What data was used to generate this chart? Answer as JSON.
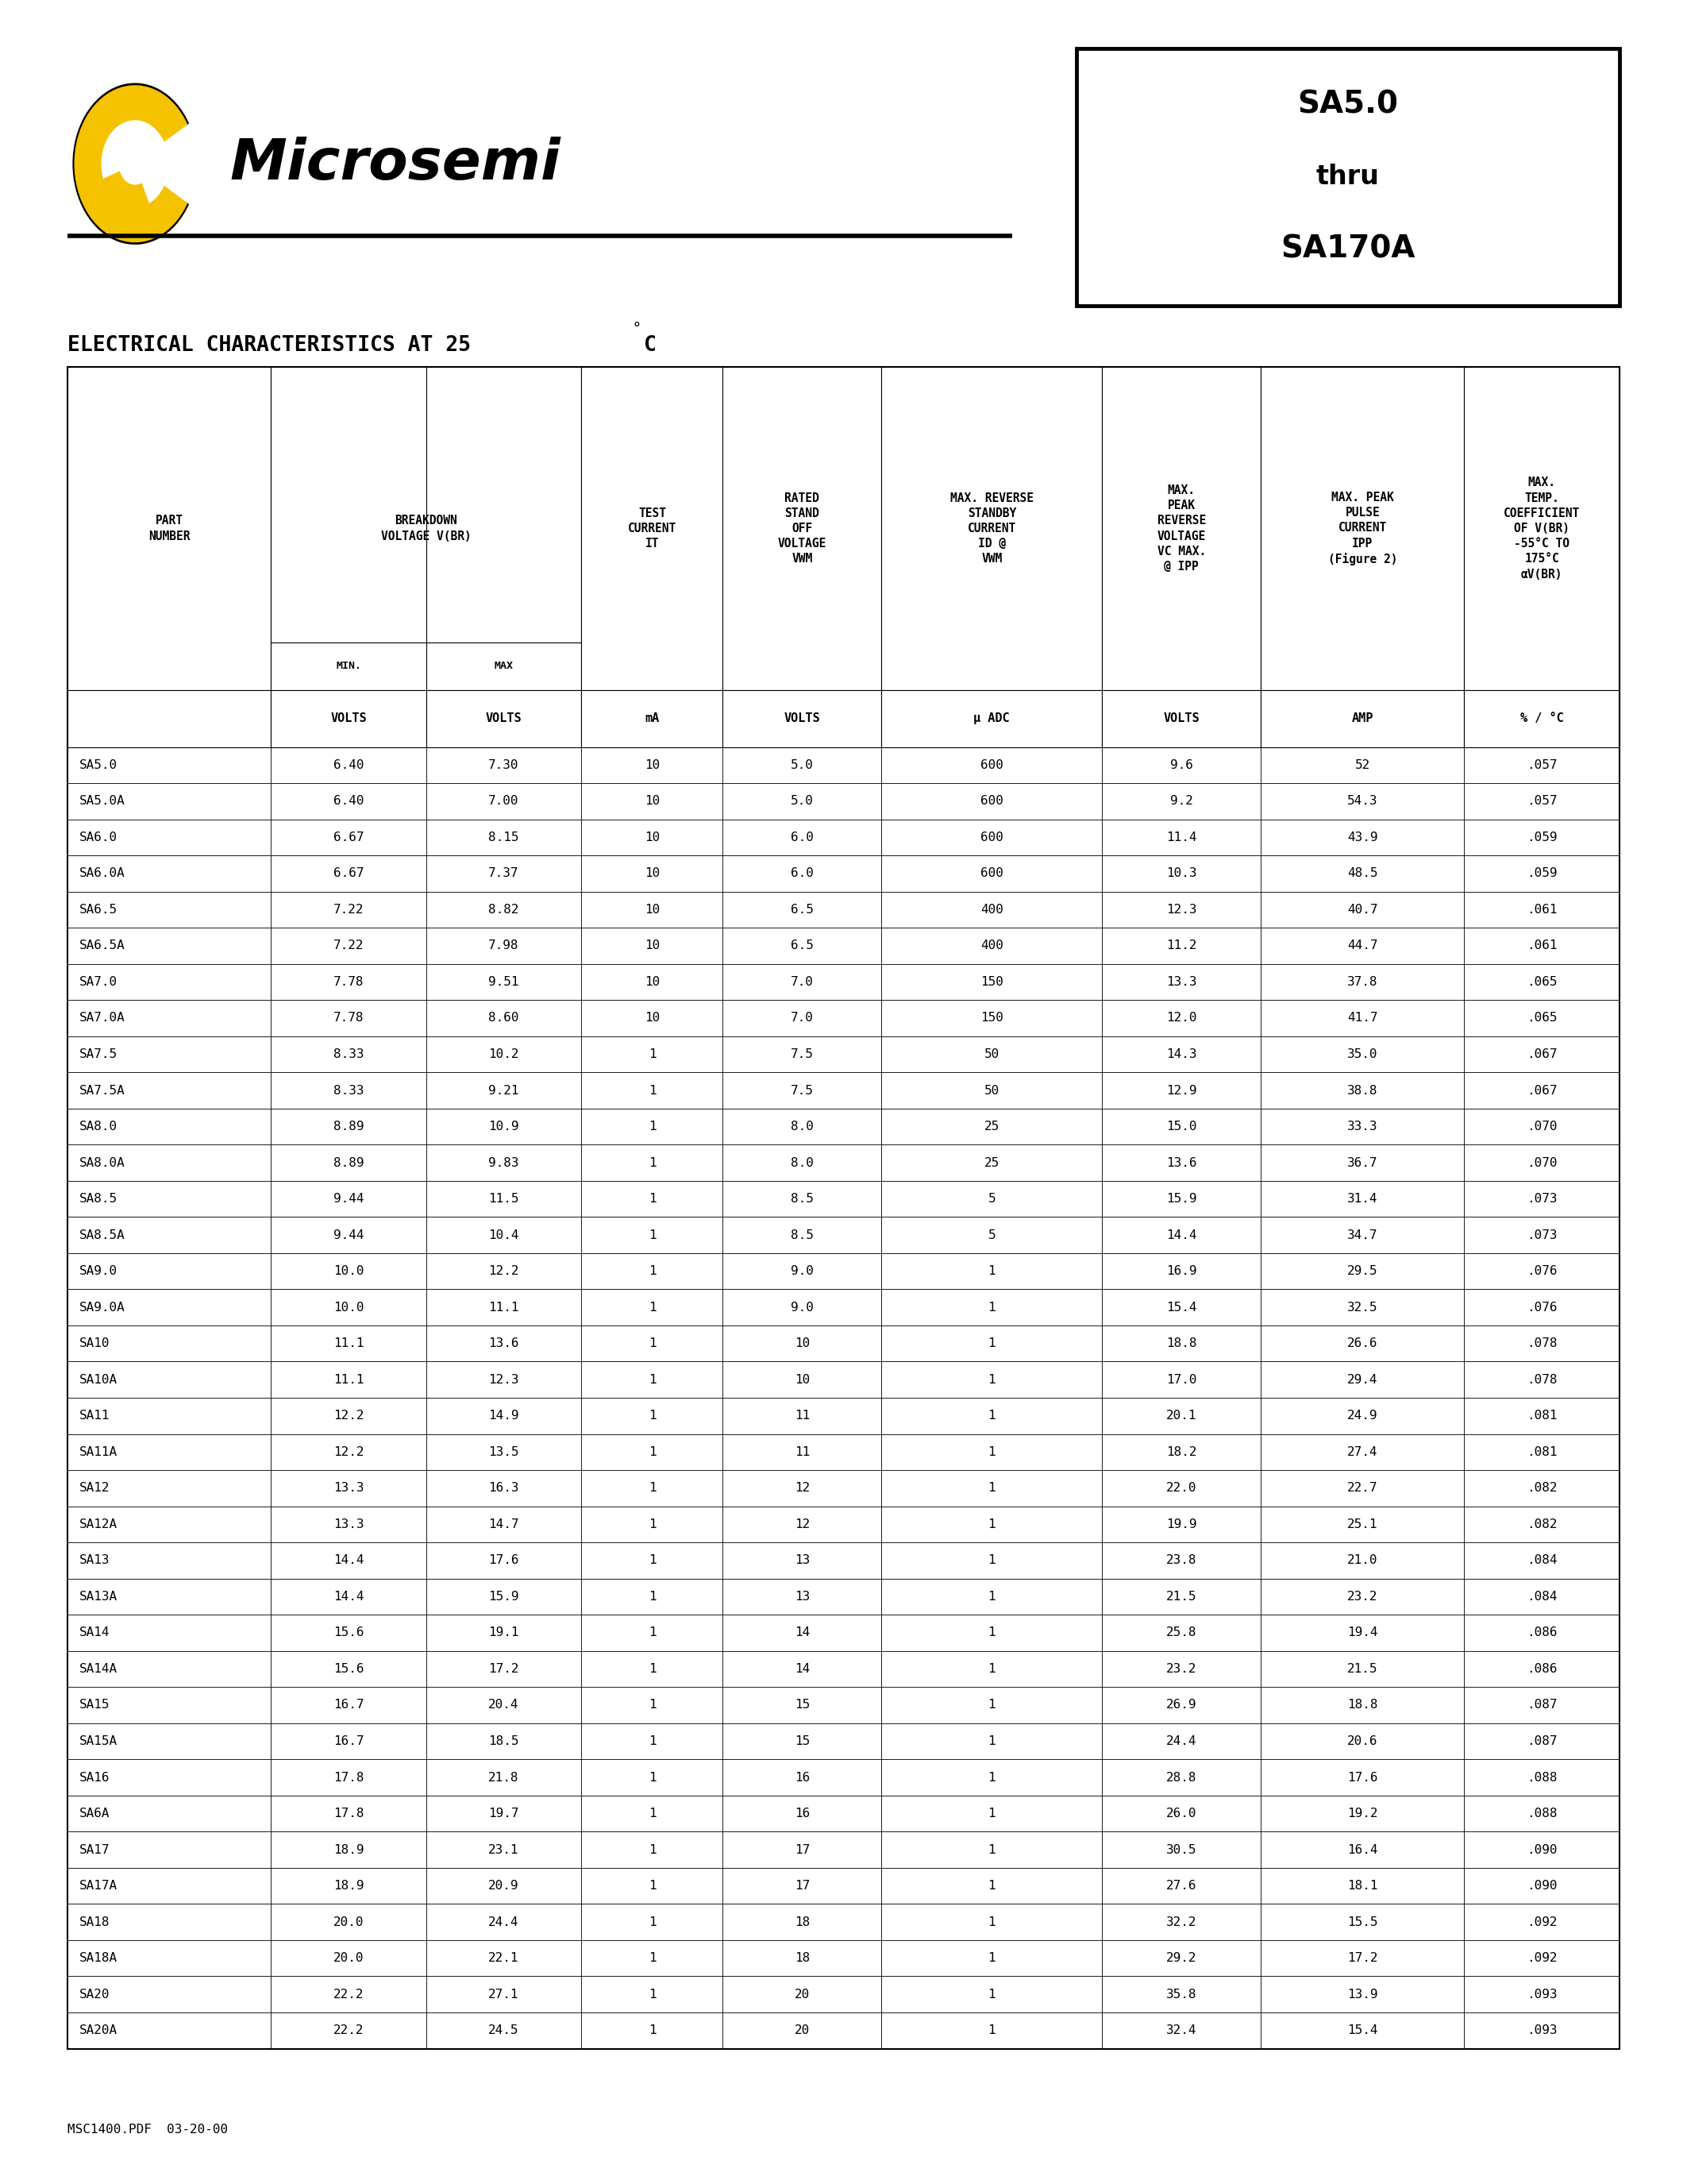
{
  "footer": "MSC1400.PDF  03-20-00",
  "rows": [
    [
      "SA5.0",
      "6.40",
      "7.30",
      "10",
      "5.0",
      "600",
      "9.6",
      "52",
      ".057"
    ],
    [
      "SA5.0A",
      "6.40",
      "7.00",
      "10",
      "5.0",
      "600",
      "9.2",
      "54.3",
      ".057"
    ],
    [
      "SA6.0",
      "6.67",
      "8.15",
      "10",
      "6.0",
      "600",
      "11.4",
      "43.9",
      ".059"
    ],
    [
      "SA6.0A",
      "6.67",
      "7.37",
      "10",
      "6.0",
      "600",
      "10.3",
      "48.5",
      ".059"
    ],
    [
      "SA6.5",
      "7.22",
      "8.82",
      "10",
      "6.5",
      "400",
      "12.3",
      "40.7",
      ".061"
    ],
    [
      "SA6.5A",
      "7.22",
      "7.98",
      "10",
      "6.5",
      "400",
      "11.2",
      "44.7",
      ".061"
    ],
    [
      "SA7.0",
      "7.78",
      "9.51",
      "10",
      "7.0",
      "150",
      "13.3",
      "37.8",
      ".065"
    ],
    [
      "SA7.0A",
      "7.78",
      "8.60",
      "10",
      "7.0",
      "150",
      "12.0",
      "41.7",
      ".065"
    ],
    [
      "SA7.5",
      "8.33",
      "10.2",
      "1",
      "7.5",
      "50",
      "14.3",
      "35.0",
      ".067"
    ],
    [
      "SA7.5A",
      "8.33",
      "9.21",
      "1",
      "7.5",
      "50",
      "12.9",
      "38.8",
      ".067"
    ],
    [
      "SA8.0",
      "8.89",
      "10.9",
      "1",
      "8.0",
      "25",
      "15.0",
      "33.3",
      ".070"
    ],
    [
      "SA8.0A",
      "8.89",
      "9.83",
      "1",
      "8.0",
      "25",
      "13.6",
      "36.7",
      ".070"
    ],
    [
      "SA8.5",
      "9.44",
      "11.5",
      "1",
      "8.5",
      "5",
      "15.9",
      "31.4",
      ".073"
    ],
    [
      "SA8.5A",
      "9.44",
      "10.4",
      "1",
      "8.5",
      "5",
      "14.4",
      "34.7",
      ".073"
    ],
    [
      "SA9.0",
      "10.0",
      "12.2",
      "1",
      "9.0",
      "1",
      "16.9",
      "29.5",
      ".076"
    ],
    [
      "SA9.0A",
      "10.0",
      "11.1",
      "1",
      "9.0",
      "1",
      "15.4",
      "32.5",
      ".076"
    ],
    [
      "SA10",
      "11.1",
      "13.6",
      "1",
      "10",
      "1",
      "18.8",
      "26.6",
      ".078"
    ],
    [
      "SA10A",
      "11.1",
      "12.3",
      "1",
      "10",
      "1",
      "17.0",
      "29.4",
      ".078"
    ],
    [
      "SA11",
      "12.2",
      "14.9",
      "1",
      "11",
      "1",
      "20.1",
      "24.9",
      ".081"
    ],
    [
      "SA11A",
      "12.2",
      "13.5",
      "1",
      "11",
      "1",
      "18.2",
      "27.4",
      ".081"
    ],
    [
      "SA12",
      "13.3",
      "16.3",
      "1",
      "12",
      "1",
      "22.0",
      "22.7",
      ".082"
    ],
    [
      "SA12A",
      "13.3",
      "14.7",
      "1",
      "12",
      "1",
      "19.9",
      "25.1",
      ".082"
    ],
    [
      "SA13",
      "14.4",
      "17.6",
      "1",
      "13",
      "1",
      "23.8",
      "21.0",
      ".084"
    ],
    [
      "SA13A",
      "14.4",
      "15.9",
      "1",
      "13",
      "1",
      "21.5",
      "23.2",
      ".084"
    ],
    [
      "SA14",
      "15.6",
      "19.1",
      "1",
      "14",
      "1",
      "25.8",
      "19.4",
      ".086"
    ],
    [
      "SA14A",
      "15.6",
      "17.2",
      "1",
      "14",
      "1",
      "23.2",
      "21.5",
      ".086"
    ],
    [
      "SA15",
      "16.7",
      "20.4",
      "1",
      "15",
      "1",
      "26.9",
      "18.8",
      ".087"
    ],
    [
      "SA15A",
      "16.7",
      "18.5",
      "1",
      "15",
      "1",
      "24.4",
      "20.6",
      ".087"
    ],
    [
      "SA16",
      "17.8",
      "21.8",
      "1",
      "16",
      "1",
      "28.8",
      "17.6",
      ".088"
    ],
    [
      "SA6A",
      "17.8",
      "19.7",
      "1",
      "16",
      "1",
      "26.0",
      "19.2",
      ".088"
    ],
    [
      "SA17",
      "18.9",
      "23.1",
      "1",
      "17",
      "1",
      "30.5",
      "16.4",
      ".090"
    ],
    [
      "SA17A",
      "18.9",
      "20.9",
      "1",
      "17",
      "1",
      "27.6",
      "18.1",
      ".090"
    ],
    [
      "SA18",
      "20.0",
      "24.4",
      "1",
      "18",
      "1",
      "32.2",
      "15.5",
      ".092"
    ],
    [
      "SA18A",
      "20.0",
      "22.1",
      "1",
      "18",
      "1",
      "29.2",
      "17.2",
      ".092"
    ],
    [
      "SA20",
      "22.2",
      "27.1",
      "1",
      "20",
      "1",
      "35.8",
      "13.9",
      ".093"
    ],
    [
      "SA20A",
      "22.2",
      "24.5",
      "1",
      "20",
      "1",
      "32.4",
      "15.4",
      ".093"
    ]
  ],
  "logo_color": "#f5c200",
  "header_texts": [
    "PART\nNUMBER",
    "BREAKDOWN\nVOLTAGE V(BR)",
    "TEST\nCURRENT\nIT",
    "RATED\nSTAND\nOFF\nVOLTAGE\nVWM",
    "MAX. REVERSE\nSTANDBY\nCURRENT\nID @\nVWM",
    "MAX.\nPEAK\nREVERSE\nVOLTAGE\nVC MAX.\n@ IPP",
    "MAX. PEAK\nPULSE\nCURRENT\nIPP\n(Figure 2)",
    "MAX.\nTEMP.\nCOEFFICIENT\nOF V(BR)\n-55°C TO\n175°C\nαV(BR)"
  ],
  "units_labels": [
    "",
    "VOLTS",
    "VOLTS",
    "mA",
    "VOLTS",
    "μ ADC",
    "VOLTS",
    "AMP",
    "% / °C"
  ],
  "col_props": [
    0.118,
    0.09,
    0.09,
    0.082,
    0.092,
    0.128,
    0.092,
    0.118,
    0.09
  ]
}
